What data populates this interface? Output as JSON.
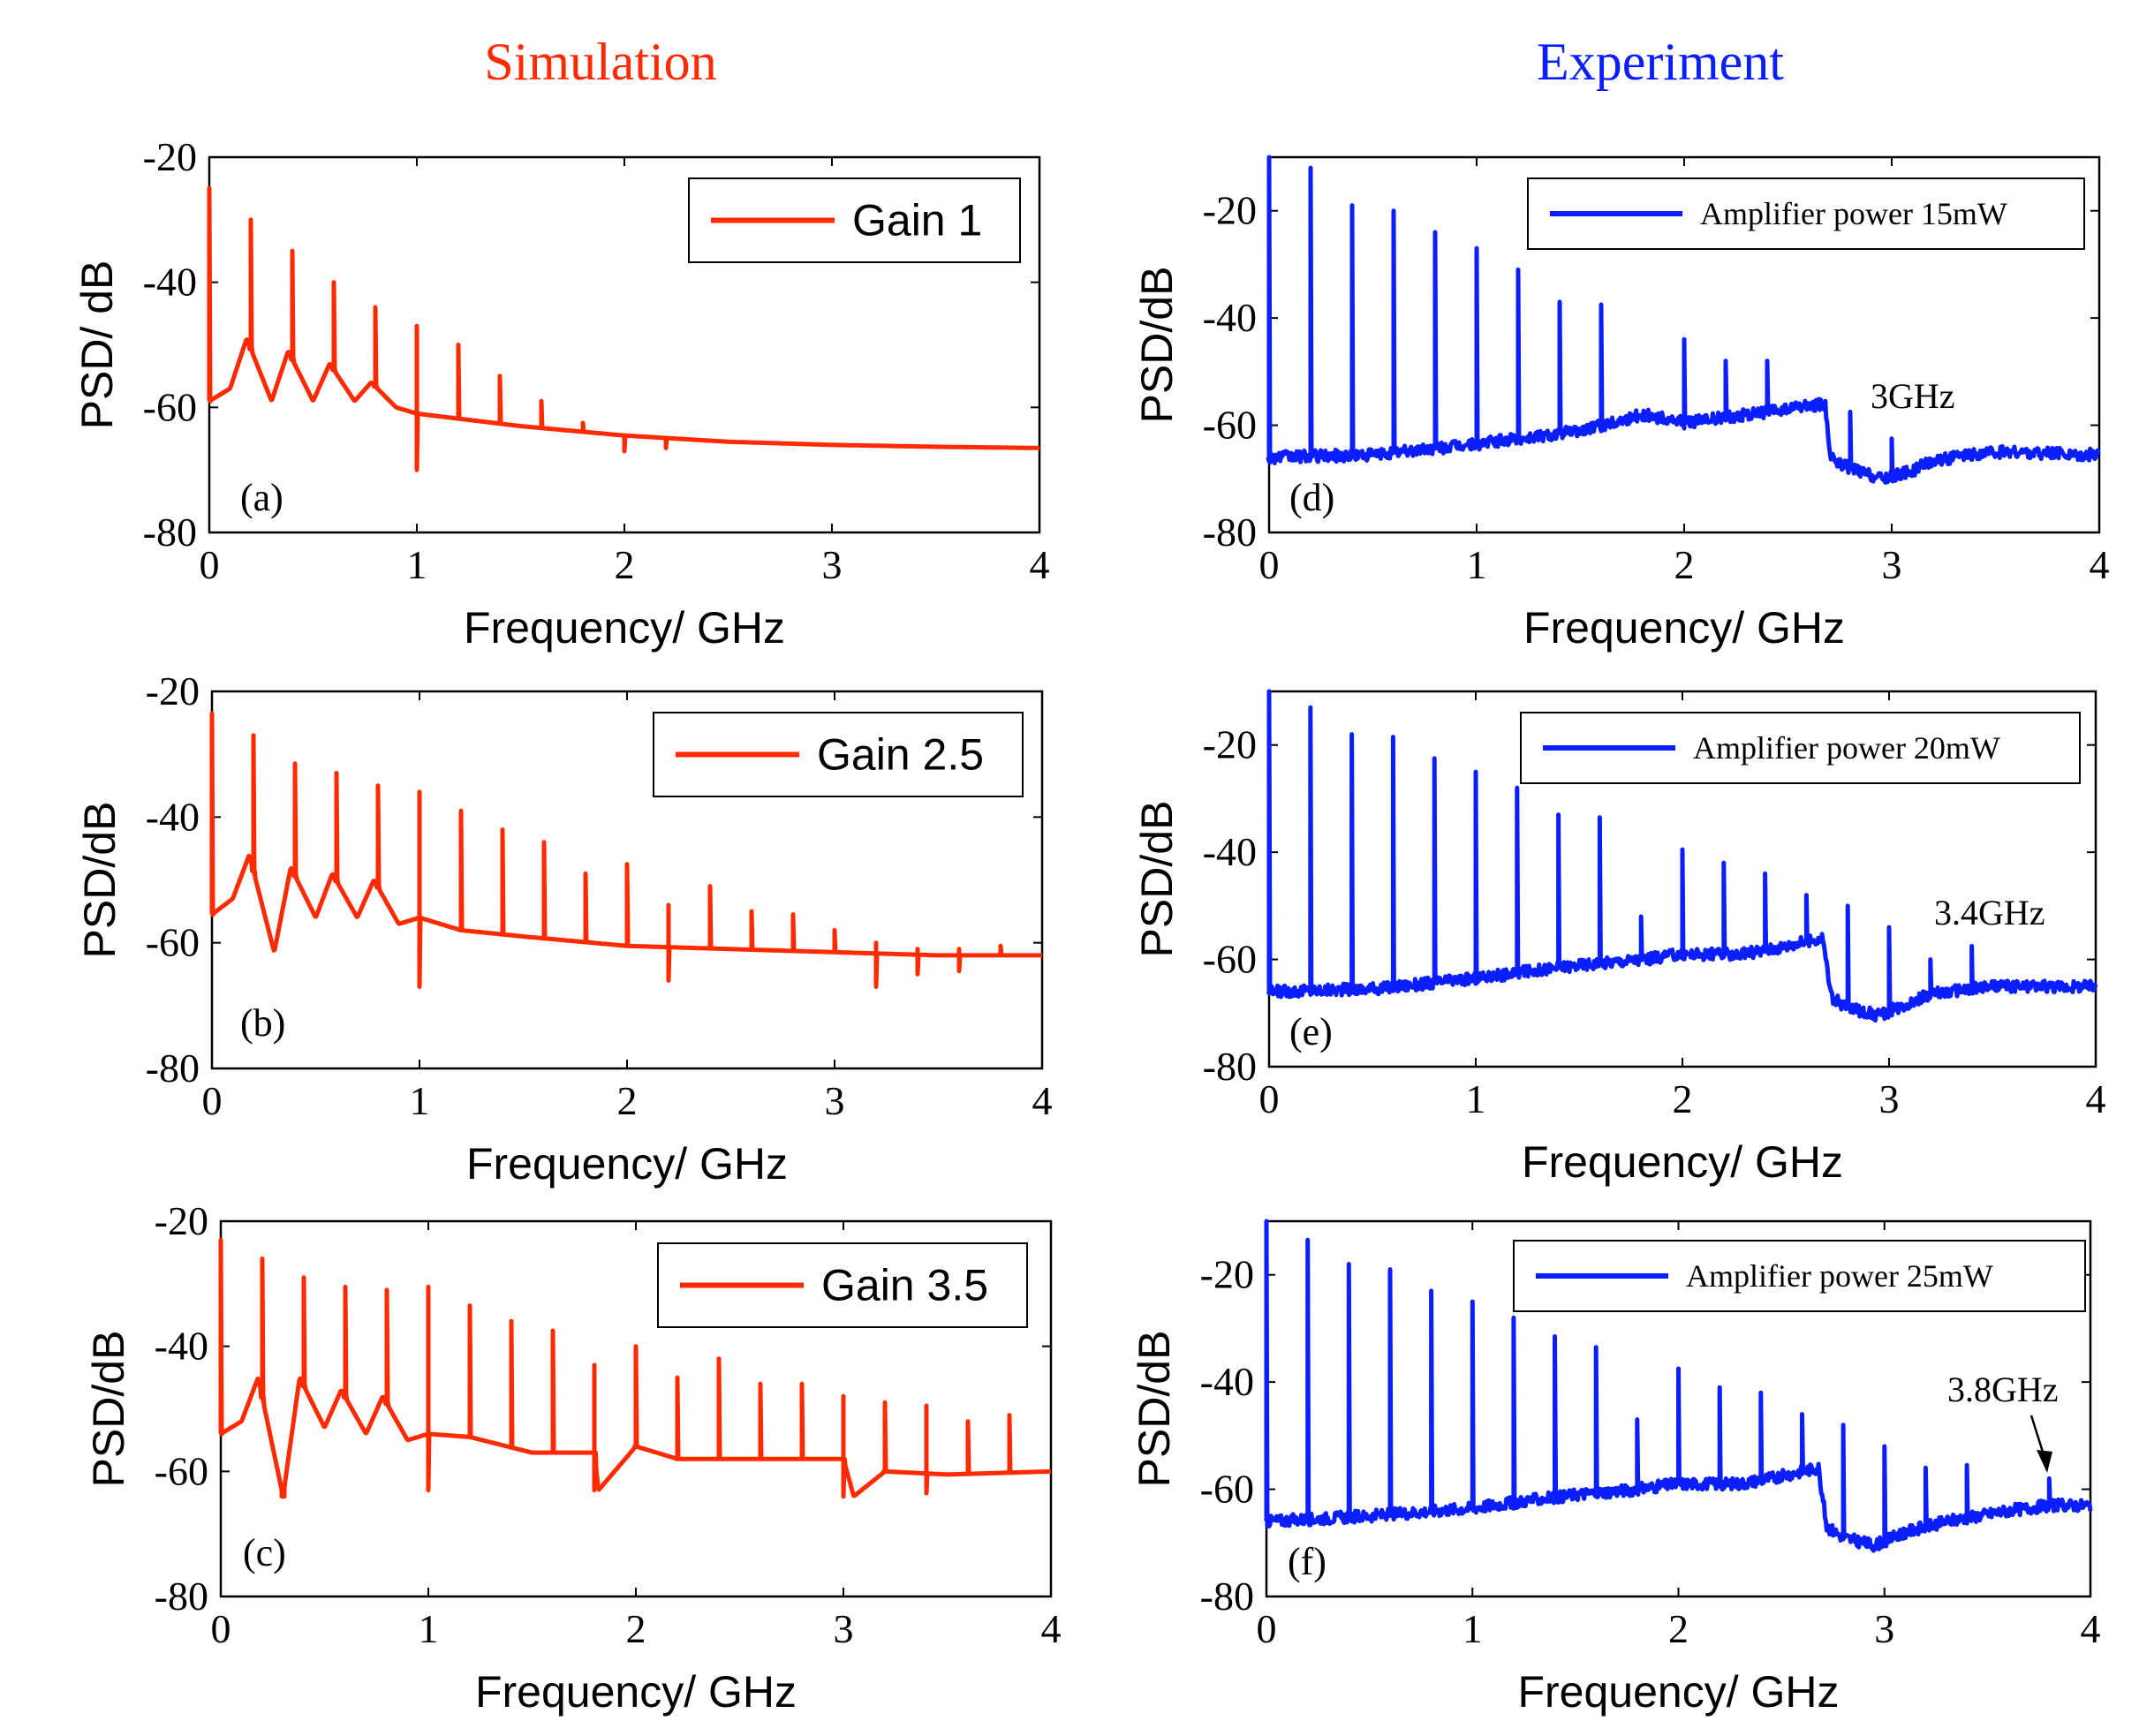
{
  "titles": {
    "left": "Simulation",
    "right": "Experiment"
  },
  "colors": {
    "simulation": "#ff2a00",
    "experiment": "#0a1eff",
    "left_title": "#ff2a00",
    "right_title": "#0a1eff"
  },
  "chart_data": [
    {
      "type": "line",
      "panel_label": "(a)",
      "xlabel": "Frequency/ GHz",
      "ylabel": "PSD/ dB",
      "xlim": [
        0,
        4
      ],
      "ylim": [
        -80,
        -20
      ],
      "xticks": [
        "0",
        "1",
        "2",
        "3",
        "4"
      ],
      "yticks": [
        "-20",
        "-40",
        "-60",
        "-80"
      ],
      "grid": false,
      "legend_position": "top-right",
      "series": [
        {
          "name": "Gain 1",
          "color": "#ff2a00",
          "baseline": [
            [
              0,
              -59
            ],
            [
              0.1,
              -57
            ],
            [
              0.18,
              -49
            ],
            [
              0.3,
              -59
            ],
            [
              0.38,
              -51
            ],
            [
              0.5,
              -59
            ],
            [
              0.58,
              -53
            ],
            [
              0.7,
              -59
            ],
            [
              0.78,
              -56
            ],
            [
              0.9,
              -60
            ],
            [
              1.0,
              -61
            ],
            [
              1.5,
              -63
            ],
            [
              2.0,
              -64.5
            ],
            [
              2.5,
              -65.5
            ],
            [
              3.0,
              -66
            ],
            [
              3.5,
              -66.3
            ],
            [
              4.0,
              -66.5
            ]
          ],
          "peaks": [
            [
              0,
              -25
            ],
            [
              0.2,
              -30
            ],
            [
              0.4,
              -35
            ],
            [
              0.6,
              -40
            ],
            [
              0.8,
              -44
            ],
            [
              1.0,
              -47
            ],
            [
              1.2,
              -50
            ],
            [
              1.4,
              -55
            ],
            [
              1.6,
              -59
            ],
            [
              1.8,
              -62.5
            ]
          ],
          "dips": [
            [
              1.0,
              -70
            ],
            [
              2.0,
              -67
            ],
            [
              2.2,
              -66.5
            ]
          ]
        }
      ]
    },
    {
      "type": "line",
      "panel_label": "(b)",
      "xlabel": "Frequency/ GHz",
      "ylabel": "PSD/dB",
      "xlim": [
        0,
        4
      ],
      "ylim": [
        -80,
        -20
      ],
      "xticks": [
        "0",
        "1",
        "2",
        "3",
        "4"
      ],
      "yticks": [
        "-20",
        "-40",
        "-60",
        "-80"
      ],
      "grid": false,
      "legend_position": "top-right",
      "series": [
        {
          "name": "Gain 2.5",
          "color": "#ff2a00",
          "baseline": [
            [
              0,
              -55.5
            ],
            [
              0.1,
              -53
            ],
            [
              0.18,
              -46
            ],
            [
              0.3,
              -61.5
            ],
            [
              0.38,
              -48
            ],
            [
              0.5,
              -56
            ],
            [
              0.58,
              -49
            ],
            [
              0.7,
              -56
            ],
            [
              0.78,
              -50
            ],
            [
              0.9,
              -57
            ],
            [
              1.0,
              -56
            ],
            [
              1.2,
              -58
            ],
            [
              1.5,
              -59
            ],
            [
              2.0,
              -60.5
            ],
            [
              2.5,
              -61
            ],
            [
              3.0,
              -61.5
            ],
            [
              3.5,
              -62
            ],
            [
              4.0,
              -62
            ]
          ],
          "peaks": [
            [
              0,
              -23.5
            ],
            [
              0.2,
              -27
            ],
            [
              0.4,
              -31.5
            ],
            [
              0.6,
              -33
            ],
            [
              0.8,
              -35
            ],
            [
              1.0,
              -36
            ],
            [
              1.2,
              -39
            ],
            [
              1.4,
              -42
            ],
            [
              1.6,
              -44
            ],
            [
              1.8,
              -49
            ],
            [
              2.0,
              -47.5
            ],
            [
              2.2,
              -54
            ],
            [
              2.4,
              -51
            ],
            [
              2.6,
              -55
            ],
            [
              2.8,
              -55.5
            ],
            [
              3.0,
              -58
            ],
            [
              3.2,
              -60
            ],
            [
              3.4,
              -61
            ],
            [
              3.6,
              -61
            ],
            [
              3.8,
              -60.5
            ]
          ],
          "dips": [
            [
              1.0,
              -67
            ],
            [
              2.2,
              -66
            ],
            [
              3.2,
              -67
            ],
            [
              3.4,
              -65
            ],
            [
              3.6,
              -64.5
            ]
          ]
        }
      ]
    },
    {
      "type": "line",
      "panel_label": "(c)",
      "xlabel": "Frequency/ GHz",
      "ylabel": "PSD/dB",
      "xlim": [
        0,
        4
      ],
      "ylim": [
        -80,
        -20
      ],
      "xticks": [
        "0",
        "1",
        "2",
        "3",
        "4"
      ],
      "yticks": [
        "-20",
        "-40",
        "-60",
        "-80"
      ],
      "grid": false,
      "legend_position": "top-right",
      "series": [
        {
          "name": "Gain 3.5",
          "color": "#ff2a00",
          "baseline": [
            [
              0,
              -54
            ],
            [
              0.1,
              -52
            ],
            [
              0.18,
              -45
            ],
            [
              0.3,
              -64
            ],
            [
              0.38,
              -45
            ],
            [
              0.5,
              -53
            ],
            [
              0.58,
              -47
            ],
            [
              0.7,
              -54
            ],
            [
              0.78,
              -48
            ],
            [
              0.9,
              -55
            ],
            [
              1.0,
              -54
            ],
            [
              1.2,
              -54.5
            ],
            [
              1.5,
              -57
            ],
            [
              1.8,
              -57
            ],
            [
              1.82,
              -63
            ],
            [
              2.0,
              -56
            ],
            [
              2.2,
              -58
            ],
            [
              2.5,
              -58
            ],
            [
              3.0,
              -58
            ],
            [
              3.05,
              -64
            ],
            [
              3.2,
              -60
            ],
            [
              3.5,
              -60.5
            ],
            [
              4.0,
              -60
            ]
          ],
          "peaks": [
            [
              0,
              -23
            ],
            [
              0.2,
              -26
            ],
            [
              0.4,
              -29
            ],
            [
              0.6,
              -30.5
            ],
            [
              0.8,
              -31
            ],
            [
              1.0,
              -30.5
            ],
            [
              1.2,
              -33.5
            ],
            [
              1.4,
              -36
            ],
            [
              1.6,
              -37.5
            ],
            [
              1.8,
              -43
            ],
            [
              2.0,
              -40
            ],
            [
              2.2,
              -45
            ],
            [
              2.4,
              -42
            ],
            [
              2.6,
              -46
            ],
            [
              2.8,
              -46
            ],
            [
              3.0,
              -48
            ],
            [
              3.2,
              -49
            ],
            [
              3.4,
              -49.5
            ],
            [
              3.6,
              -52
            ],
            [
              3.8,
              -51
            ]
          ],
          "dips": [
            [
              0.3,
              -64
            ],
            [
              1.0,
              -63
            ],
            [
              1.8,
              -63
            ],
            [
              3.0,
              -64
            ],
            [
              3.4,
              -63.5
            ]
          ]
        }
      ]
    },
    {
      "type": "line",
      "panel_label": "(d)",
      "xlabel": "Frequency/ GHz",
      "ylabel": "PSD/dB",
      "xlim": [
        0,
        4
      ],
      "ylim": [
        -80,
        -10
      ],
      "xticks": [
        "0",
        "1",
        "2",
        "3",
        "4"
      ],
      "yticks": [
        "-20",
        "-40",
        "-60",
        "-80"
      ],
      "grid": false,
      "legend_position": "top-right",
      "annotation": "3GHz",
      "series": [
        {
          "name": "Amplifier power 15mW",
          "color": "#0a1eff",
          "baseline": [
            [
              0,
              -66
            ],
            [
              0.5,
              -65.5
            ],
            [
              1.0,
              -63.5
            ],
            [
              1.5,
              -61
            ],
            [
              1.8,
              -58
            ],
            [
              2.0,
              -59.5
            ],
            [
              2.3,
              -58
            ],
            [
              2.5,
              -57
            ],
            [
              2.68,
              -56
            ],
            [
              2.7,
              -66
            ],
            [
              2.8,
              -68
            ],
            [
              2.95,
              -70
            ],
            [
              3.1,
              -68.5
            ],
            [
              3.2,
              -66.5
            ],
            [
              3.5,
              -65
            ],
            [
              4.0,
              -65.5
            ]
          ],
          "peaks": [
            [
              0,
              -10
            ],
            [
              0.2,
              -12
            ],
            [
              0.4,
              -19
            ],
            [
              0.6,
              -20
            ],
            [
              0.8,
              -24
            ],
            [
              1.0,
              -27
            ],
            [
              1.2,
              -31
            ],
            [
              1.4,
              -37
            ],
            [
              1.6,
              -37.5
            ],
            [
              2.0,
              -44
            ],
            [
              2.2,
              -48
            ],
            [
              2.4,
              -48
            ],
            [
              2.8,
              -57.5
            ],
            [
              3.0,
              -62.5
            ]
          ]
        }
      ]
    },
    {
      "type": "line",
      "panel_label": "(e)",
      "xlabel": "Frequency/ GHz",
      "ylabel": "PSD/dB",
      "xlim": [
        0,
        4
      ],
      "ylim": [
        -80,
        -10
      ],
      "xticks": [
        "0",
        "1",
        "2",
        "3",
        "4"
      ],
      "yticks": [
        "-20",
        "-40",
        "-60",
        "-80"
      ],
      "grid": false,
      "legend_position": "top-right",
      "annotation": "3.4GHz",
      "series": [
        {
          "name": "Amplifier power 20mW",
          "color": "#0a1eff",
          "baseline": [
            [
              0,
              -66
            ],
            [
              0.5,
              -65.5
            ],
            [
              1.0,
              -63.5
            ],
            [
              1.5,
              -61
            ],
            [
              1.8,
              -60
            ],
            [
              2.0,
              -59
            ],
            [
              2.3,
              -59
            ],
            [
              2.5,
              -57.5
            ],
            [
              2.68,
              -56
            ],
            [
              2.72,
              -67
            ],
            [
              2.8,
              -69
            ],
            [
              2.95,
              -70.5
            ],
            [
              3.1,
              -68
            ],
            [
              3.2,
              -66.5
            ],
            [
              3.5,
              -65
            ],
            [
              4.0,
              -65
            ]
          ],
          "peaks": [
            [
              0,
              -10
            ],
            [
              0.2,
              -13
            ],
            [
              0.4,
              -18
            ],
            [
              0.6,
              -18.5
            ],
            [
              0.8,
              -22.5
            ],
            [
              1.0,
              -25
            ],
            [
              1.2,
              -28
            ],
            [
              1.4,
              -33
            ],
            [
              1.6,
              -33.5
            ],
            [
              1.8,
              -52
            ],
            [
              2.0,
              -39.5
            ],
            [
              2.2,
              -42
            ],
            [
              2.4,
              -44
            ],
            [
              2.6,
              -48
            ],
            [
              2.8,
              -50
            ],
            [
              3.0,
              -54
            ],
            [
              3.2,
              -60
            ],
            [
              3.4,
              -57.5
            ]
          ]
        }
      ]
    },
    {
      "type": "line",
      "panel_label": "(f)",
      "xlabel": "Frequency/ GHz",
      "ylabel": "PSD/dB",
      "xlim": [
        0,
        4
      ],
      "ylim": [
        -80,
        -10
      ],
      "xticks": [
        "0",
        "1",
        "2",
        "3",
        "4"
      ],
      "yticks": [
        "-20",
        "-40",
        "-60",
        "-80"
      ],
      "grid": false,
      "legend_position": "top-right",
      "annotation": "3.8GHz",
      "series": [
        {
          "name": "Amplifier power 25mW",
          "color": "#0a1eff",
          "baseline": [
            [
              0,
              -66
            ],
            [
              0.5,
              -65
            ],
            [
              1.0,
              -63.5
            ],
            [
              1.5,
              -61
            ],
            [
              1.8,
              -60
            ],
            [
              2.0,
              -59
            ],
            [
              2.3,
              -59
            ],
            [
              2.5,
              -57.5
            ],
            [
              2.68,
              -56
            ],
            [
              2.72,
              -67
            ],
            [
              2.8,
              -69
            ],
            [
              2.95,
              -70.5
            ],
            [
              3.1,
              -68
            ],
            [
              3.3,
              -66
            ],
            [
              3.6,
              -64
            ],
            [
              3.8,
              -63
            ],
            [
              4.0,
              -63
            ]
          ],
          "peaks": [
            [
              0,
              -10
            ],
            [
              0.2,
              -13.5
            ],
            [
              0.4,
              -18
            ],
            [
              0.6,
              -19
            ],
            [
              0.8,
              -23
            ],
            [
              1.0,
              -25
            ],
            [
              1.2,
              -28
            ],
            [
              1.4,
              -31.5
            ],
            [
              1.6,
              -33.5
            ],
            [
              1.8,
              -47
            ],
            [
              2.0,
              -37.5
            ],
            [
              2.2,
              -41
            ],
            [
              2.4,
              -42
            ],
            [
              2.6,
              -46
            ],
            [
              2.8,
              -48
            ],
            [
              3.0,
              -52
            ],
            [
              3.2,
              -56
            ],
            [
              3.4,
              -55.5
            ],
            [
              3.8,
              -58
            ]
          ]
        }
      ]
    }
  ]
}
